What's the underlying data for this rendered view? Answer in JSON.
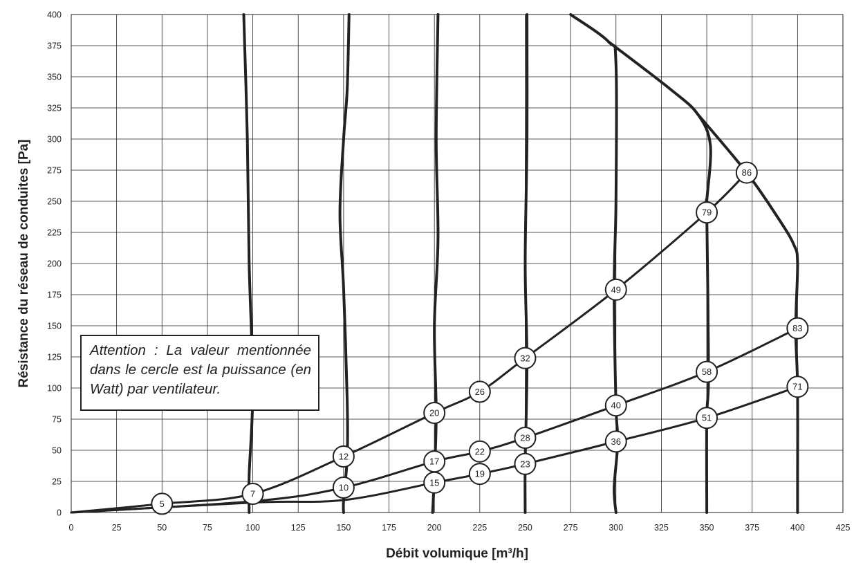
{
  "chart_data": {
    "type": "line",
    "xlabel": "Débit volumique [m³/h]",
    "ylabel": "Résistance du réseau de conduites [Pa]",
    "xlim": [
      0,
      425
    ],
    "ylim": [
      0,
      400
    ],
    "x_ticks": [
      "0",
      "25",
      "50",
      "75",
      "100",
      "125",
      "150",
      "175",
      "200",
      "225",
      "250",
      "275",
      "300",
      "325",
      "350",
      "375",
      "400",
      "425"
    ],
    "y_ticks": [
      "0",
      "25",
      "50",
      "75",
      "100",
      "125",
      "150",
      "175",
      "200",
      "225",
      "250",
      "275",
      "300",
      "325",
      "350",
      "375",
      "400"
    ],
    "grid": true,
    "note": "Attention : La valeur mentionnée dans le cercle est la puissance (en Watt) par ventilateur.",
    "fan_curves": [
      {
        "points": [
          [
            95,
            400
          ],
          [
            97,
            300
          ],
          [
            98,
            200
          ],
          [
            100,
            100
          ],
          [
            98,
            30
          ],
          [
            98,
            0
          ]
        ]
      },
      {
        "points": [
          [
            153,
            400
          ],
          [
            152,
            340
          ],
          [
            150,
            300
          ],
          [
            148,
            240
          ],
          [
            150,
            180
          ],
          [
            152,
            90
          ],
          [
            152,
            45
          ],
          [
            150,
            10
          ],
          [
            150,
            0
          ]
        ]
      },
      {
        "points": [
          [
            202,
            400
          ],
          [
            201,
            300
          ],
          [
            202,
            220
          ],
          [
            200,
            150
          ],
          [
            201,
            80
          ],
          [
            200,
            30
          ],
          [
            199,
            0
          ]
        ]
      },
      {
        "points": [
          [
            251,
            400
          ],
          [
            251,
            300
          ],
          [
            250,
            200
          ],
          [
            251,
            120
          ],
          [
            250,
            40
          ],
          [
            250,
            0
          ]
        ]
      },
      {
        "points": [
          [
            275,
            400
          ],
          [
            296,
            378
          ],
          [
            300,
            360
          ],
          [
            300,
            250
          ],
          [
            299,
            179
          ],
          [
            300,
            86
          ],
          [
            301,
            57
          ],
          [
            299,
            20
          ],
          [
            300,
            0
          ]
        ]
      },
      {
        "points": [
          [
            296,
            378
          ],
          [
            330,
            340
          ],
          [
            345,
            320
          ],
          [
            352,
            295
          ],
          [
            350,
            250
          ],
          [
            350,
            241
          ],
          [
            351,
            113
          ],
          [
            350,
            76
          ],
          [
            350,
            0
          ]
        ]
      },
      {
        "points": [
          [
            345,
            320
          ],
          [
            372,
            273
          ],
          [
            390,
            235
          ],
          [
            398,
            215
          ],
          [
            400,
            200
          ],
          [
            399,
            148
          ],
          [
            400,
            101
          ],
          [
            400,
            30
          ],
          [
            400,
            0
          ]
        ]
      }
    ],
    "system_curves": [
      {
        "points": [
          [
            0,
            0
          ],
          [
            50,
            7
          ],
          [
            100,
            15
          ],
          [
            150,
            45
          ],
          [
            200,
            80
          ],
          [
            225,
            97
          ],
          [
            250,
            124
          ],
          [
            300,
            179
          ],
          [
            350,
            241
          ],
          [
            372,
            273
          ]
        ]
      },
      {
        "points": [
          [
            0,
            0
          ],
          [
            100,
            9
          ],
          [
            150,
            20
          ],
          [
            200,
            41
          ],
          [
            225,
            49
          ],
          [
            250,
            60
          ],
          [
            300,
            86
          ],
          [
            350,
            113
          ],
          [
            400,
            148
          ]
        ]
      },
      {
        "points": [
          [
            0,
            0
          ],
          [
            100,
            8
          ],
          [
            150,
            10
          ],
          [
            200,
            24
          ],
          [
            225,
            31
          ],
          [
            250,
            39
          ],
          [
            300,
            57
          ],
          [
            350,
            76
          ],
          [
            400,
            101
          ]
        ]
      }
    ],
    "power_markers": [
      {
        "x": 50,
        "y": 7,
        "label": "5"
      },
      {
        "x": 100,
        "y": 15,
        "label": "7"
      },
      {
        "x": 150,
        "y": 45,
        "label": "12"
      },
      {
        "x": 150,
        "y": 20,
        "label": "10"
      },
      {
        "x": 200,
        "y": 80,
        "label": "20"
      },
      {
        "x": 200,
        "y": 41,
        "label": "17"
      },
      {
        "x": 200,
        "y": 24,
        "label": "15"
      },
      {
        "x": 225,
        "y": 97,
        "label": "26"
      },
      {
        "x": 225,
        "y": 49,
        "label": "22"
      },
      {
        "x": 225,
        "y": 31,
        "label": "19"
      },
      {
        "x": 250,
        "y": 124,
        "label": "32"
      },
      {
        "x": 250,
        "y": 60,
        "label": "28"
      },
      {
        "x": 250,
        "y": 39,
        "label": "23"
      },
      {
        "x": 300,
        "y": 179,
        "label": "49"
      },
      {
        "x": 300,
        "y": 86,
        "label": "40"
      },
      {
        "x": 300,
        "y": 57,
        "label": "36"
      },
      {
        "x": 350,
        "y": 241,
        "label": "79"
      },
      {
        "x": 350,
        "y": 113,
        "label": "58"
      },
      {
        "x": 350,
        "y": 76,
        "label": "51"
      },
      {
        "x": 372,
        "y": 273,
        "label": "86"
      },
      {
        "x": 400,
        "y": 148,
        "label": "83"
      },
      {
        "x": 400,
        "y": 101,
        "label": "71"
      }
    ]
  },
  "colors": {
    "curve": "#222222",
    "grid": "#222222",
    "background": "#ffffff"
  }
}
